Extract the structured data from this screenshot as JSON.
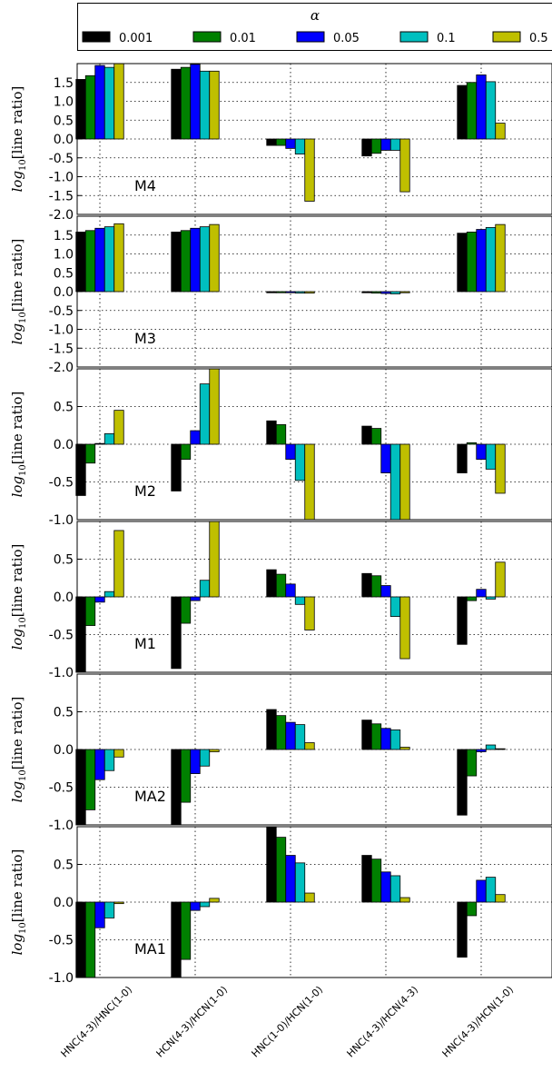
{
  "chart_data": {
    "type": "bar",
    "categories": [
      "HNC(4-3)/HNC(1-0)",
      "HCN(4-3)/HCN(1-0)",
      "HNC(1-0)/HCN(1-0)",
      "HNC(4-3)/HCN(4-3)",
      "HNC(4-3)/HCN(1-0)"
    ],
    "legend": {
      "title": "α",
      "placement": "top",
      "entries": [
        "0.001",
        "0.01",
        "0.05",
        "0.1",
        "0.5"
      ]
    },
    "colors": [
      "#000000",
      "#008000",
      "#0000ff",
      "#00bfbf",
      "#bfbf00"
    ],
    "grid": true,
    "ylabel_prefix": "log",
    "ylabel_sub": "10",
    "ylabel_suffix": "[line ratio]",
    "panels": [
      {
        "label": "M4",
        "ylim": [
          -2.0,
          2.0
        ],
        "yticks": [
          "1.5",
          "1.0",
          "0.5",
          "0.0",
          "-0.5",
          "-1.0",
          "-1.5",
          "-2.0"
        ],
        "series": [
          {
            "name": "0.001",
            "values": [
              1.58,
              1.85,
              -0.17,
              -0.45,
              1.42
            ]
          },
          {
            "name": "0.01",
            "values": [
              1.68,
              1.9,
              -0.17,
              -0.38,
              1.5
            ]
          },
          {
            "name": "0.05",
            "values": [
              1.95,
              1.98,
              -0.25,
              -0.3,
              1.7
            ]
          },
          {
            "name": "0.1",
            "values": [
              1.9,
              1.8,
              -0.4,
              -0.3,
              1.52
            ]
          },
          {
            "name": "0.5",
            "values": [
              2.0,
              1.8,
              -1.65,
              -1.4,
              0.42
            ]
          }
        ]
      },
      {
        "label": "M3",
        "ylim": [
          -2.0,
          2.0
        ],
        "yticks": [
          "1.5",
          "1.0",
          "0.5",
          "0.0",
          "-0.5",
          "-1.0",
          "-1.5",
          "-2.0"
        ],
        "series": [
          {
            "name": "0.001",
            "values": [
              1.58,
              1.58,
              -0.03,
              -0.03,
              1.55
            ]
          },
          {
            "name": "0.01",
            "values": [
              1.62,
              1.62,
              -0.03,
              -0.04,
              1.58
            ]
          },
          {
            "name": "0.05",
            "values": [
              1.68,
              1.68,
              -0.03,
              -0.05,
              1.65
            ]
          },
          {
            "name": "0.1",
            "values": [
              1.72,
              1.72,
              -0.04,
              -0.06,
              1.7
            ]
          },
          {
            "name": "0.5",
            "values": [
              1.8,
              1.78,
              -0.04,
              -0.03,
              1.78
            ]
          }
        ]
      },
      {
        "label": "M2",
        "ylim": [
          -1.0,
          1.0
        ],
        "yticks": [
          "0.5",
          "0.0",
          "-0.5",
          "-1.0"
        ],
        "series": [
          {
            "name": "0.001",
            "values": [
              -0.68,
              -0.62,
              0.31,
              0.24,
              -0.38
            ]
          },
          {
            "name": "0.01",
            "values": [
              -0.25,
              -0.2,
              0.26,
              0.21,
              0.02
            ]
          },
          {
            "name": "0.05",
            "values": [
              0.01,
              0.18,
              -0.2,
              -0.38,
              -0.2
            ]
          },
          {
            "name": "0.1",
            "values": [
              0.14,
              0.8,
              -0.48,
              -1.0,
              -0.33
            ]
          },
          {
            "name": "0.5",
            "values": [
              0.45,
              1.0,
              -1.0,
              -1.0,
              -0.65
            ]
          }
        ]
      },
      {
        "label": "M1",
        "ylim": [
          -1.0,
          1.0
        ],
        "yticks": [
          "0.5",
          "0.0",
          "-0.5",
          "-1.0"
        ],
        "series": [
          {
            "name": "0.001",
            "values": [
              -1.0,
              -0.95,
              0.36,
              0.31,
              -0.63
            ]
          },
          {
            "name": "0.01",
            "values": [
              -0.38,
              -0.35,
              0.3,
              0.28,
              -0.05
            ]
          },
          {
            "name": "0.05",
            "values": [
              -0.07,
              -0.05,
              0.17,
              0.15,
              0.1
            ]
          },
          {
            "name": "0.1",
            "values": [
              0.07,
              0.22,
              -0.1,
              -0.26,
              -0.03
            ]
          },
          {
            "name": "0.5",
            "values": [
              0.88,
              1.0,
              -0.44,
              -0.82,
              0.46
            ]
          }
        ]
      },
      {
        "label": "MA2",
        "ylim": [
          -1.0,
          1.0
        ],
        "yticks": [
          "0.5",
          "0.0",
          "-0.5",
          "-1.0"
        ],
        "series": [
          {
            "name": "0.001",
            "values": [
              -1.0,
              -1.0,
              0.53,
              0.39,
              -0.87
            ]
          },
          {
            "name": "0.01",
            "values": [
              -0.8,
              -0.7,
              0.45,
              0.34,
              -0.35
            ]
          },
          {
            "name": "0.05",
            "values": [
              -0.4,
              -0.32,
              0.36,
              0.28,
              -0.03
            ]
          },
          {
            "name": "0.1",
            "values": [
              -0.28,
              -0.22,
              0.33,
              0.26,
              0.06
            ]
          },
          {
            "name": "0.5",
            "values": [
              -0.1,
              -0.03,
              0.09,
              0.03,
              0.01
            ]
          }
        ]
      },
      {
        "label": "MA1",
        "ylim": [
          -1.0,
          1.0
        ],
        "yticks": [
          "0.5",
          "0.0",
          "-0.5",
          "-1.0"
        ],
        "series": [
          {
            "name": "0.001",
            "values": [
              -1.0,
              -1.0,
              1.0,
              0.62,
              -0.73
            ]
          },
          {
            "name": "0.01",
            "values": [
              -1.0,
              -0.76,
              0.86,
              0.57,
              -0.18
            ]
          },
          {
            "name": "0.05",
            "values": [
              -0.34,
              -0.11,
              0.62,
              0.4,
              0.29
            ]
          },
          {
            "name": "0.1",
            "values": [
              -0.21,
              -0.06,
              0.52,
              0.35,
              0.33
            ]
          },
          {
            "name": "0.5",
            "values": [
              -0.02,
              0.05,
              0.12,
              0.06,
              0.1
            ]
          }
        ]
      }
    ]
  }
}
